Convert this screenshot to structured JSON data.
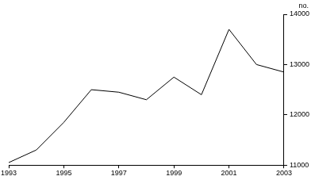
{
  "chart_data": {
    "type": "line",
    "ylabel": "no.",
    "color": "#000000",
    "x": [
      1993,
      1994,
      1995,
      1996,
      1997,
      1998,
      1999,
      2000,
      2001,
      2002,
      2003
    ],
    "values": [
      11050,
      11300,
      11850,
      12500,
      12450,
      12300,
      12750,
      12400,
      13700,
      13000,
      12850
    ],
    "xlim": [
      1993,
      2003
    ],
    "xticks": [
      1993,
      1995,
      1997,
      1999,
      2001,
      2003
    ],
    "ylim": [
      11000,
      14000
    ],
    "yticks": [
      11000,
      12000,
      13000,
      14000
    ],
    "grid": false
  }
}
